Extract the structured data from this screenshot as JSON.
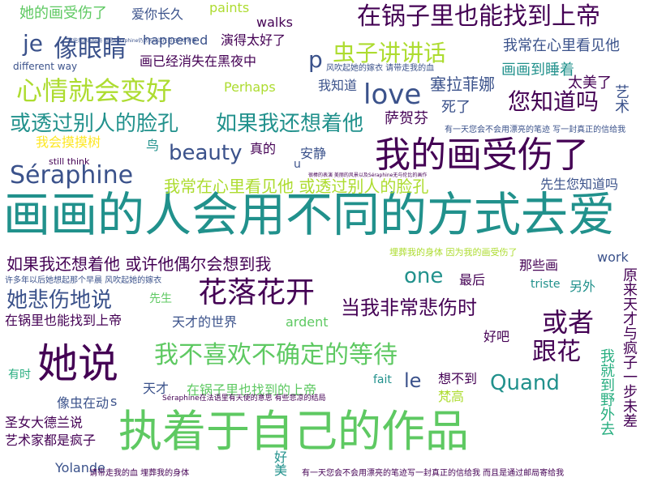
{
  "palette": {
    "dark_purple": "#440154",
    "indigo": "#3b528b",
    "blue": "#2c728e",
    "teal": "#21918c",
    "green": "#28ae80",
    "light_green": "#5ec962",
    "lime": "#addc30",
    "yellow": "#fde725"
  },
  "words": [
    "画画的人会用不同的方式去爱",
    "执着于自己的作品",
    "我的画受伤了",
    "Séraphine",
    "在锅子里也能找到上帝",
    "心情就会变好",
    "花落花开",
    "我不喜欢不确定的等待",
    "她说",
    "或透过别人的脸孔",
    "如果我还想着他",
    "她悲伤地说",
    "当我非常悲伤时",
    "像眼睛",
    "虫子讲讲话",
    "我常在心里看见他 或透过别人的脸孔",
    "如果我还想着他 或许他偶尔会想到我",
    "love",
    "one",
    "beauty",
    "您知道吗",
    "或者",
    "跟花",
    "Quand",
    "je",
    "le",
    "p",
    "她的画受伤了",
    "爱你长久",
    "画已经消失在黑夜中",
    "画画到睡着",
    "我常在心里看见他",
    "太美了",
    "塞拉菲娜",
    "萨贺芬",
    "死了",
    "艺术",
    "我知道",
    "安静",
    "鸟",
    "真的",
    "我会摸摸树",
    "先生您知道吗",
    "在锅里也能找到上帝",
    "天才的世界",
    "圣女大德兰说",
    "艺术家都是疯子",
    "像虫在动",
    "原来天才与疯子一步未差",
    "我就到野外去",
    "在锅子里也找到的上帝",
    "想不到",
    "梵高",
    "好吧",
    "那些画",
    "最后",
    "另外",
    "天才",
    "有时",
    "好美",
    "演得太好了",
    "happened",
    "walks",
    "paints",
    "Perhaps",
    "work",
    "triste",
    "ardent",
    "fait",
    "Yolande",
    "still think",
    "different way",
    "u",
    "s",
    "先生",
    "风吹起她的嫁衣 请带走我的血",
    "许多年以后她想起那个早晨 风吹起她的嫁衣",
    "埋葬我的身体 因为我的画受伤了",
    "请带走我的血 埋葬我的身体",
    "有一天您会不会用漂亮的笔迹写一封真正的信给我 而且是通过邮局寄给我",
    "Séraphine在法语里有天使的意思 有些悲凉的结局",
    "有些悲凉的结局 但是Séraphine仍然可以活在自己的世界里",
    "有一天您会不会用漂亮的笔迹 写一封真正的信给我",
    "很棒的表演 美丽的风景以及Séraphine无与伦比的画作"
  ]
}
